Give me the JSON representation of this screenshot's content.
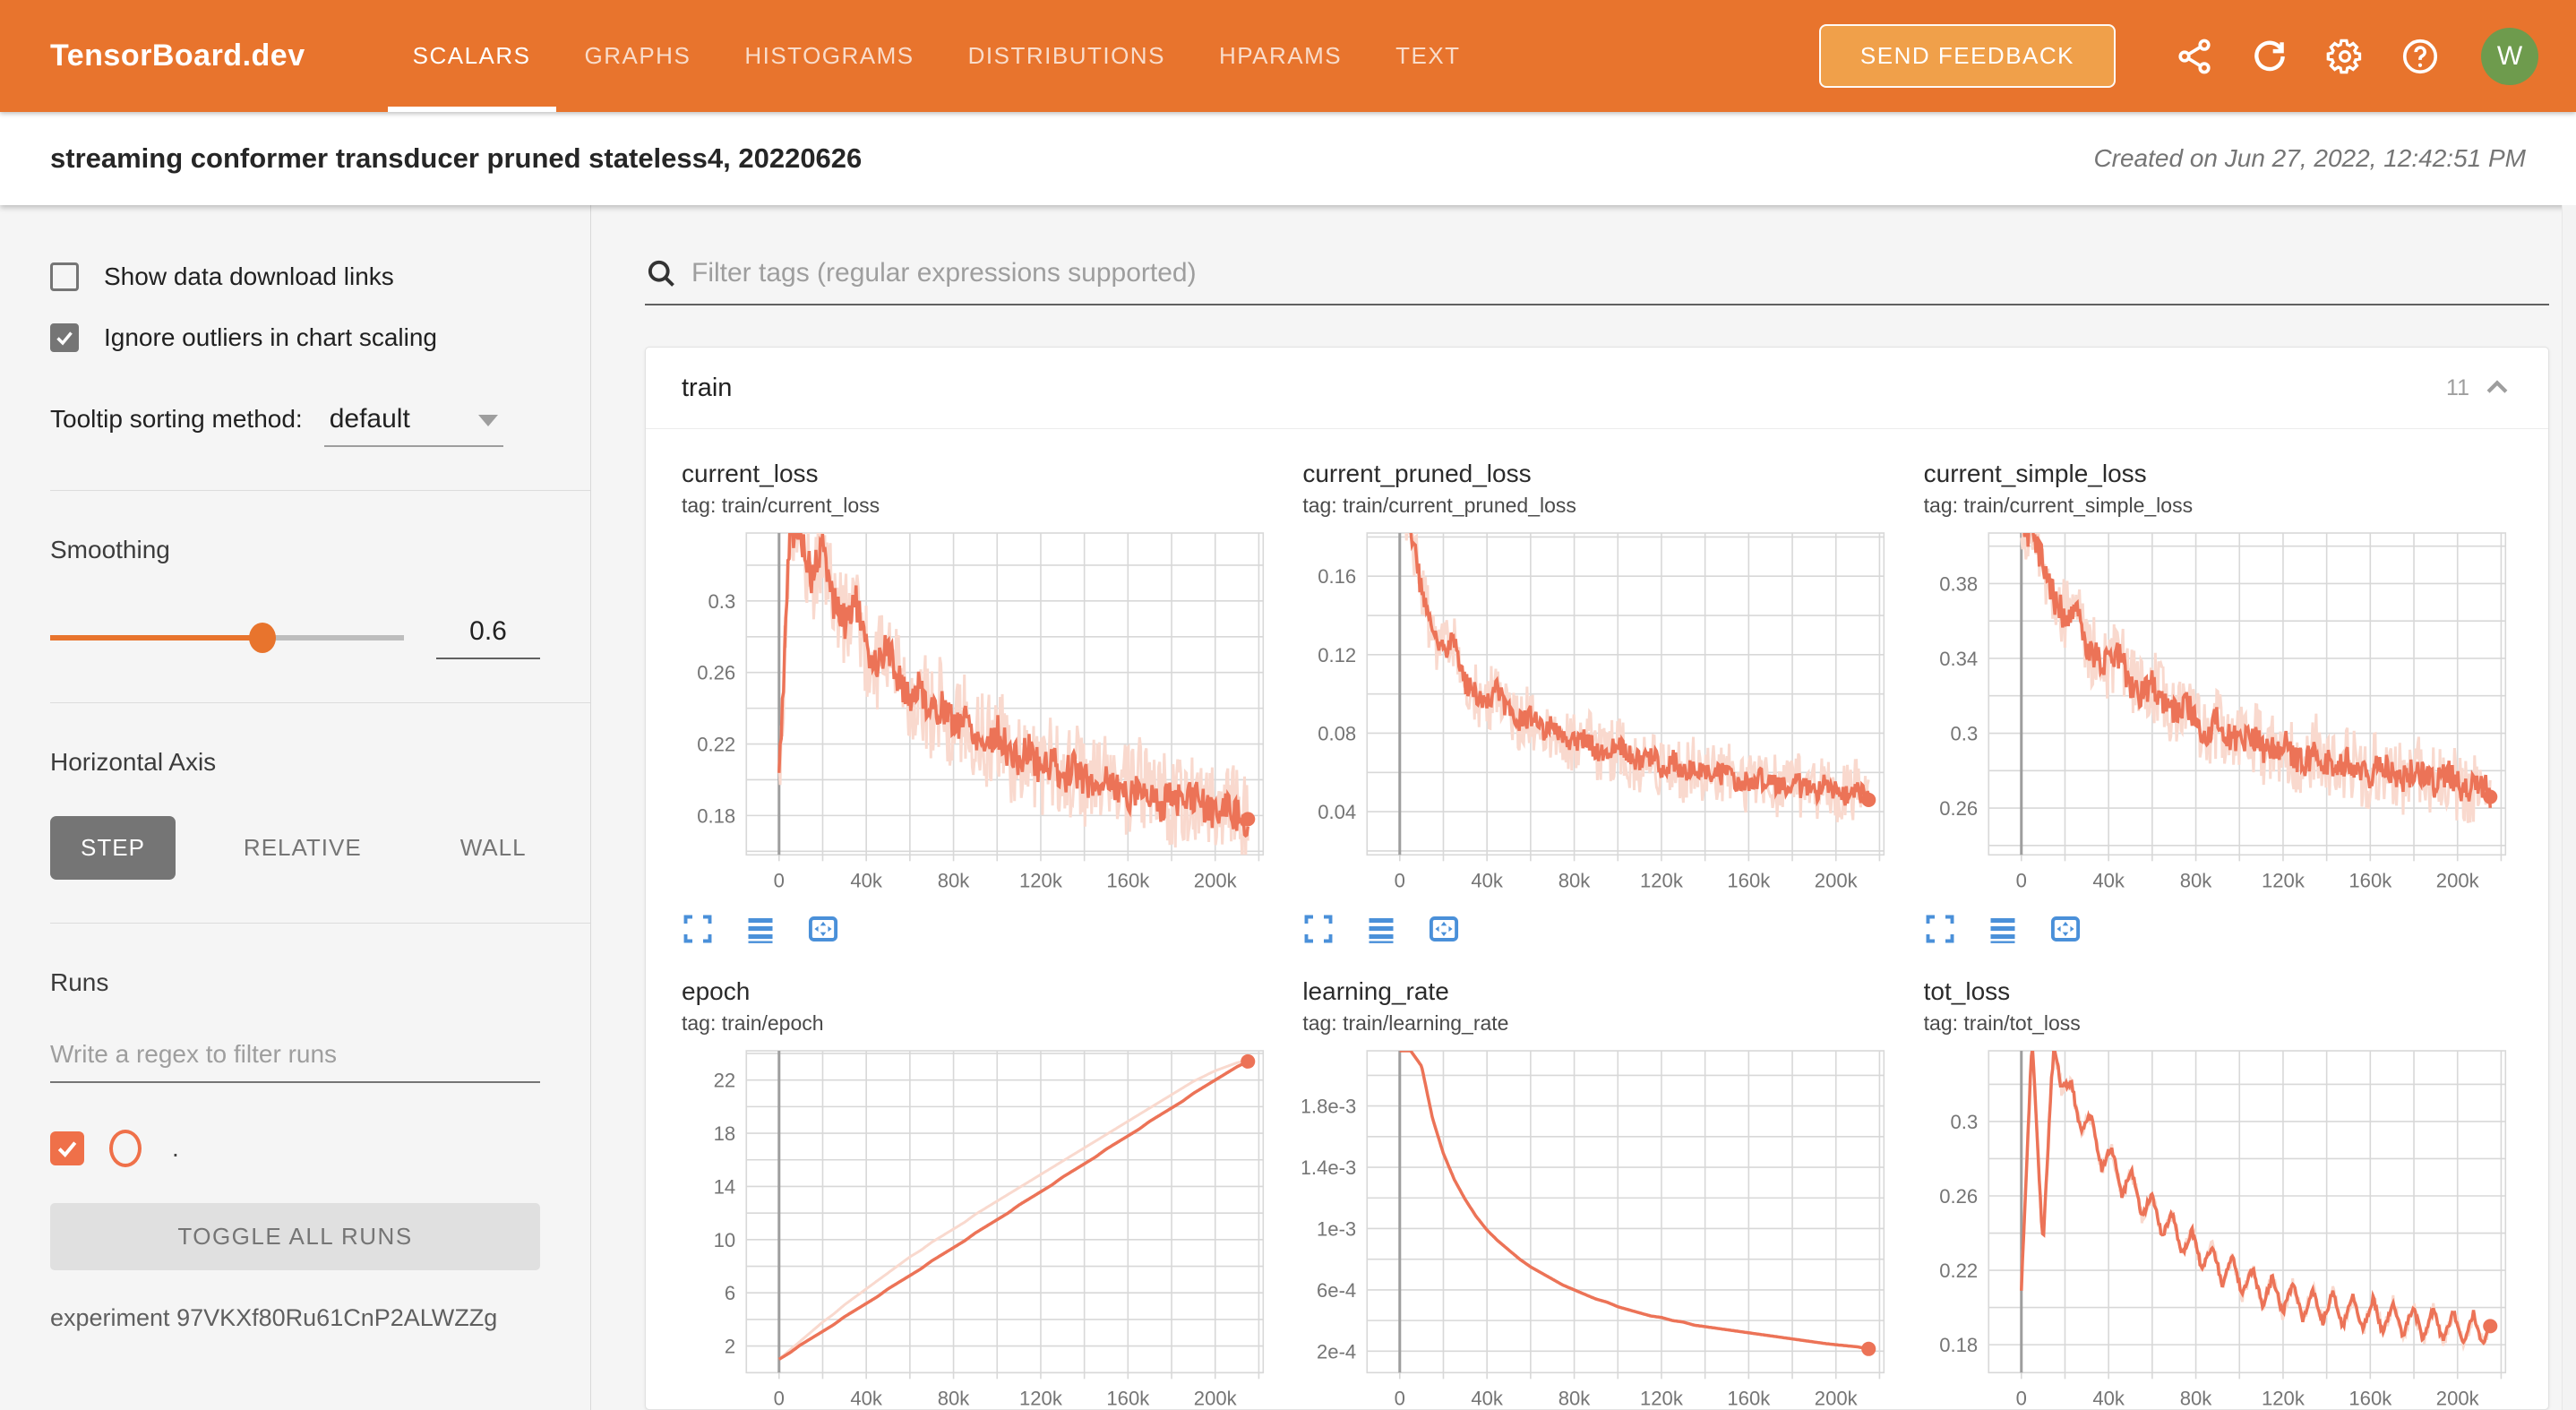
{
  "header": {
    "logo": "TensorBoard.dev",
    "tabs": [
      {
        "label": "SCALARS",
        "active": true
      },
      {
        "label": "GRAPHS",
        "active": false
      },
      {
        "label": "HISTOGRAMS",
        "active": false
      },
      {
        "label": "DISTRIBUTIONS",
        "active": false
      },
      {
        "label": "HPARAMS",
        "active": false
      },
      {
        "label": "TEXT",
        "active": false
      }
    ],
    "send_feedback_label": "SEND FEEDBACK",
    "icons": [
      "share-icon",
      "refresh-icon",
      "settings-icon",
      "help-icon"
    ],
    "avatar_letter": "W"
  },
  "subheader": {
    "title": "streaming conformer transducer pruned stateless4, 20220626",
    "created": "Created on Jun 27, 2022, 12:42:51 PM"
  },
  "sidebar": {
    "checkboxes": [
      {
        "label": "Show data download links",
        "checked": false
      },
      {
        "label": "Ignore outliers in chart scaling",
        "checked": true
      }
    ],
    "tooltip_sorting": {
      "label": "Tooltip sorting method:",
      "value": "default"
    },
    "smoothing": {
      "label": "Smoothing",
      "value": "0.6",
      "fraction": 0.6
    },
    "horizontal_axis": {
      "label": "Horizontal Axis",
      "options": [
        "STEP",
        "RELATIVE",
        "WALL"
      ],
      "selected": "STEP"
    },
    "runs": {
      "label": "Runs",
      "filter_placeholder": "Write a regex to filter runs",
      "run_item": {
        "checked": true,
        "label": "."
      },
      "toggle_all_label": "TOGGLE ALL RUNS",
      "experiment": "experiment 97VKXf80Ru61CnP2ALWZZg"
    }
  },
  "main": {
    "filter_placeholder": "Filter tags (regular expressions supported)",
    "group": {
      "name": "train",
      "count": "11"
    }
  },
  "colors": {
    "header_orange": "#e8742d",
    "chart_line": "#ec7357",
    "chart_line_light": "#f9d9ce",
    "icon_blue": "#4a90d9",
    "avatar_green": "#6e9b4d",
    "run_orange": "#ef7049",
    "grid": "#d8d8d8",
    "tick_label": "#757575"
  },
  "chart_data": [
    {
      "type": "line",
      "title": "current_loss",
      "tag": "tag: train/current_loss",
      "x_start": 0,
      "x_step": 5000,
      "xlim": [
        -15000,
        222000
      ],
      "x_grid_step": 20000,
      "x_tick_values": [
        0,
        40000,
        80000,
        120000,
        160000,
        200000
      ],
      "x_tick_labels": [
        "0",
        "40k",
        "80k",
        "120k",
        "160k",
        "200k"
      ],
      "ylim": [
        0.158,
        0.338
      ],
      "y_grid_step": 0.02,
      "y_tick_values": [
        0.18,
        0.22,
        0.26,
        0.3
      ],
      "y_tick_labels": [
        "0.18",
        "0.22",
        "0.26",
        "0.3"
      ],
      "noise": 0.028,
      "smooth_noise": 0.01,
      "values": [
        0.2,
        0.34,
        0.338,
        0.312,
        0.33,
        0.3,
        0.288,
        0.302,
        0.272,
        0.266,
        0.274,
        0.256,
        0.246,
        0.252,
        0.237,
        0.242,
        0.23,
        0.236,
        0.226,
        0.22,
        0.227,
        0.216,
        0.21,
        0.217,
        0.206,
        0.211,
        0.201,
        0.207,
        0.2,
        0.196,
        0.202,
        0.195,
        0.191,
        0.197,
        0.19,
        0.186,
        0.192,
        0.186,
        0.191,
        0.185,
        0.181,
        0.186,
        0.18,
        0.178
      ]
    },
    {
      "type": "line",
      "title": "current_pruned_loss",
      "tag": "tag: train/current_pruned_loss",
      "x_start": 0,
      "x_step": 5000,
      "xlim": [
        -15000,
        222000
      ],
      "x_grid_step": 20000,
      "x_tick_values": [
        0,
        40000,
        80000,
        120000,
        160000,
        200000
      ],
      "x_tick_labels": [
        "0",
        "40k",
        "80k",
        "120k",
        "160k",
        "200k"
      ],
      "ylim": [
        0.018,
        0.182
      ],
      "y_grid_step": 0.02,
      "y_tick_values": [
        0.04,
        0.08,
        0.12,
        0.16
      ],
      "y_tick_labels": [
        "0.04",
        "0.08",
        "0.12",
        "0.16"
      ],
      "noise": 0.016,
      "smooth_noise": 0.006,
      "values": [
        0.195,
        0.186,
        0.152,
        0.131,
        0.122,
        0.127,
        0.106,
        0.1,
        0.096,
        0.102,
        0.091,
        0.086,
        0.089,
        0.081,
        0.083,
        0.078,
        0.075,
        0.079,
        0.072,
        0.07,
        0.073,
        0.068,
        0.065,
        0.069,
        0.063,
        0.066,
        0.06,
        0.063,
        0.06,
        0.058,
        0.061,
        0.056,
        0.055,
        0.058,
        0.054,
        0.052,
        0.056,
        0.052,
        0.05,
        0.054,
        0.05,
        0.048,
        0.051,
        0.046
      ]
    },
    {
      "type": "line",
      "title": "current_simple_loss",
      "tag": "tag: train/current_simple_loss",
      "x_start": 0,
      "x_step": 5000,
      "xlim": [
        -15000,
        222000
      ],
      "x_grid_step": 20000,
      "x_tick_values": [
        0,
        40000,
        80000,
        120000,
        160000,
        200000
      ],
      "x_tick_labels": [
        "0",
        "40k",
        "80k",
        "120k",
        "160k",
        "200k"
      ],
      "ylim": [
        0.235,
        0.407
      ],
      "y_grid_step": 0.02,
      "y_tick_values": [
        0.26,
        0.3,
        0.34,
        0.38
      ],
      "y_tick_labels": [
        "0.26",
        "0.3",
        "0.34",
        "0.38"
      ],
      "noise": 0.02,
      "smooth_noise": 0.008,
      "values": [
        0.41,
        0.404,
        0.392,
        0.372,
        0.362,
        0.367,
        0.346,
        0.341,
        0.336,
        0.342,
        0.326,
        0.321,
        0.327,
        0.316,
        0.311,
        0.317,
        0.306,
        0.301,
        0.307,
        0.298,
        0.295,
        0.301,
        0.292,
        0.29,
        0.295,
        0.288,
        0.285,
        0.291,
        0.284,
        0.282,
        0.287,
        0.28,
        0.278,
        0.283,
        0.278,
        0.275,
        0.281,
        0.276,
        0.273,
        0.279,
        0.272,
        0.27,
        0.275,
        0.266
      ]
    },
    {
      "type": "line",
      "title": "epoch",
      "tag": "tag: train/epoch",
      "x_start": 0,
      "x_step": 5000,
      "xlim": [
        -15000,
        222000
      ],
      "x_grid_step": 20000,
      "x_tick_values": [
        0,
        40000,
        80000,
        120000,
        160000,
        200000
      ],
      "x_tick_labels": [
        "0",
        "40k",
        "80k",
        "120k",
        "160k",
        "200k"
      ],
      "ylim": [
        0,
        24.2
      ],
      "y_grid_step": 2,
      "y_tick_values": [
        2,
        6,
        10,
        14,
        18,
        22
      ],
      "y_tick_labels": [
        "2",
        "6",
        "10",
        "14",
        "18",
        "22"
      ],
      "noise": 0,
      "smooth_noise": 0,
      "values": [
        1.0,
        1.5,
        2.1,
        2.6,
        3.1,
        3.6,
        4.2,
        4.7,
        5.2,
        5.7,
        6.3,
        6.8,
        7.3,
        7.8,
        8.4,
        8.9,
        9.4,
        9.9,
        10.5,
        11.0,
        11.5,
        12.0,
        12.6,
        13.1,
        13.6,
        14.1,
        14.7,
        15.2,
        15.7,
        16.2,
        16.8,
        17.3,
        17.8,
        18.3,
        18.9,
        19.4,
        19.9,
        20.4,
        21.0,
        21.5,
        22.0,
        22.5,
        23.0,
        23.4
      ],
      "values_raw": [
        1.0,
        1.7,
        2.4,
        3.1,
        3.8,
        4.4,
        5.1,
        5.7,
        6.3,
        6.9,
        7.5,
        8.1,
        8.7,
        9.2,
        9.8,
        10.3,
        10.8,
        11.3,
        11.9,
        12.4,
        12.9,
        13.4,
        13.9,
        14.4,
        14.9,
        15.4,
        15.9,
        16.4,
        16.9,
        17.4,
        17.9,
        18.4,
        18.9,
        19.4,
        19.9,
        20.4,
        20.9,
        21.4,
        21.9,
        22.3,
        22.7,
        23.0,
        23.3,
        23.5
      ]
    },
    {
      "type": "line",
      "title": "learning_rate",
      "tag": "tag: train/learning_rate",
      "x_start": 0,
      "x_step": 5000,
      "xlim": [
        -15000,
        222000
      ],
      "x_grid_step": 20000,
      "x_tick_values": [
        0,
        40000,
        80000,
        120000,
        160000,
        200000
      ],
      "x_tick_labels": [
        "0",
        "40k",
        "80k",
        "120k",
        "160k",
        "200k"
      ],
      "ylim": [
        6e-05,
        0.00216
      ],
      "y_grid_step": 0.0002,
      "y_tick_values": [
        0.0002,
        0.0006,
        0.001,
        0.0014,
        0.0018
      ],
      "y_tick_labels": [
        "2e-4",
        "6e-4",
        "1e-3",
        "1.4e-3",
        "1.8e-3"
      ],
      "noise": 0,
      "smooth_noise": 0,
      "no_raw": true,
      "values": [
        0.00216,
        0.00216,
        0.00206,
        0.00172,
        0.00149,
        0.00132,
        0.00119,
        0.00108,
        0.00099,
        0.00092,
        0.00086,
        0.0008,
        0.00075,
        0.00071,
        0.00067,
        0.00063,
        0.0006,
        0.00057,
        0.00054,
        0.00052,
        0.00049,
        0.00047,
        0.00045,
        0.00043,
        0.00042,
        0.0004,
        0.00039,
        0.00037,
        0.00036,
        0.00035,
        0.00034,
        0.00033,
        0.00032,
        0.00031,
        0.0003,
        0.00029,
        0.00028,
        0.00027,
        0.00026,
        0.00025,
        0.000242,
        0.000235,
        0.000228,
        0.000215
      ]
    },
    {
      "type": "line",
      "title": "tot_loss",
      "tag": "tag: train/tot_loss",
      "x_start": 0,
      "x_step": 5000,
      "xlim": [
        -15000,
        222000
      ],
      "x_grid_step": 20000,
      "x_tick_values": [
        0,
        40000,
        80000,
        120000,
        160000,
        200000
      ],
      "x_tick_labels": [
        "0",
        "40k",
        "80k",
        "120k",
        "160k",
        "200k"
      ],
      "ylim": [
        0.165,
        0.338
      ],
      "y_grid_step": 0.02,
      "y_tick_values": [
        0.18,
        0.22,
        0.26,
        0.3
      ],
      "y_tick_labels": [
        "0.18",
        "0.22",
        "0.26",
        "0.3"
      ],
      "noise": 0.004,
      "smooth_noise": 0.002,
      "zigzag": {
        "amp": 0.009,
        "period": 18
      },
      "values": [
        0.22,
        0.336,
        0.24,
        0.336,
        0.322,
        0.306,
        0.3,
        0.286,
        0.28,
        0.271,
        0.265,
        0.258,
        0.252,
        0.246,
        0.241,
        0.236,
        0.231,
        0.227,
        0.223,
        0.219,
        0.216,
        0.213,
        0.21,
        0.208,
        0.206,
        0.204,
        0.202,
        0.201,
        0.2,
        0.199,
        0.198,
        0.197,
        0.196,
        0.195,
        0.194,
        0.193,
        0.192,
        0.191,
        0.19,
        0.19,
        0.189,
        0.188,
        0.188,
        0.19
      ]
    }
  ]
}
